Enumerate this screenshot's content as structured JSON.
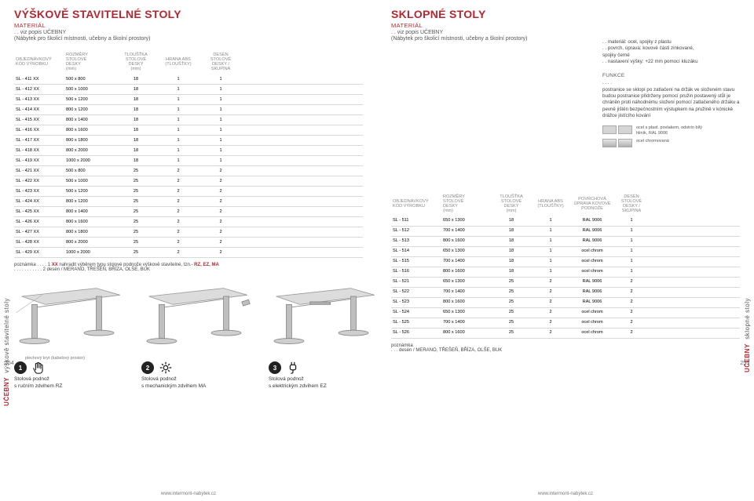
{
  "left": {
    "title": "VÝŠKOVĚ STAVITELNÉ STOLY",
    "material_label": "MATERIÁL",
    "material_note1": ". . viz popis UČEBNY",
    "material_note2": "(Nábytek pro školicí místnosti, učebny a školní prostory)",
    "headers": [
      "OBJEDNÁVKOVÝ\nKÓD VÝROBKU",
      "ROZMĚRY\nSTOLOVÉ\nDESKY\n(mm)",
      "TLOUŠŤKA\nSTOLOVÉ\nDESKY\n(mm)",
      "HRANA ABS\n(TLOUŠŤKY)",
      "DESÉN\nSTOLOVÉ\nDESKY /\nSKUPINA"
    ],
    "rows": [
      [
        "SL - 411 XX",
        "500 x 800",
        "18",
        "1",
        "1"
      ],
      [
        "SL - 412 XX",
        "500 x 1000",
        "18",
        "1",
        "1"
      ],
      [
        "SL - 413 XX",
        "500 x 1200",
        "18",
        "1",
        "1"
      ],
      [
        "SL - 414 XX",
        "800 x 1200",
        "18",
        "1",
        "1"
      ],
      [
        "SL - 415 XX",
        "800 x 1400",
        "18",
        "1",
        "1"
      ],
      [
        "SL - 416 XX",
        "800 x 1600",
        "18",
        "1",
        "1"
      ],
      [
        "SL - 417 XX",
        "800 x 1800",
        "18",
        "1",
        "1"
      ],
      [
        "SL - 418 XX",
        "800 x 2000",
        "18",
        "1",
        "1"
      ],
      [
        "SL - 419 XX",
        "1000 x 2000",
        "18",
        "1",
        "1"
      ],
      [
        "SL - 421 XX",
        "500 x 800",
        "25",
        "2",
        "2"
      ],
      [
        "SL - 422 XX",
        "500 x 1000",
        "25",
        "2",
        "2"
      ],
      [
        "SL - 423 XX",
        "500 x 1200",
        "25",
        "2",
        "2"
      ],
      [
        "SL - 424 XX",
        "800 x 1200",
        "25",
        "2",
        "2"
      ],
      [
        "SL - 425 XX",
        "800 x 1400",
        "25",
        "2",
        "2"
      ],
      [
        "SL - 426 XX",
        "800 x 1600",
        "25",
        "2",
        "2"
      ],
      [
        "SL - 427 XX",
        "800 x 1800",
        "25",
        "2",
        "2"
      ],
      [
        "SL - 428 XX",
        "800 x 2000",
        "25",
        "2",
        "2"
      ],
      [
        "SL - 429 XX",
        "1000 x 2000",
        "25",
        "2",
        "2"
      ]
    ],
    "note_label": "poznámka",
    "note1_prefix": ". . . . 1 ",
    "note1_bold": "XX",
    "note1_rest": " nahradit výběrem typu stolové podnože výškově stavitelné, tzn.- ",
    "note1_codes": "RZ, EZ, MA",
    "note2": ". . . . . . . . . . . 2 desén / MERANO, TŘEŠEŇ, BŘÍZA, OLŠE, BUK",
    "vtab_category": "UČEBNY",
    "vtab_sub": "výškově stavitelné stoly",
    "page_number": "254",
    "footer_url": "www.intermont-nabytek.cz",
    "callout1": "plechový kryt\n(kabelový prostor)",
    "legs": [
      {
        "num": "1",
        "line1": "Stolová podnož",
        "line2": "s ručním zdvihem RZ",
        "icon": "hand"
      },
      {
        "num": "2",
        "line1": "Stolová podnož",
        "line2": "s mechanickým zdvihem MA",
        "icon": "gear"
      },
      {
        "num": "3",
        "line1": "Stolová podnož",
        "line2": "s elektrickým zdvihem EZ",
        "icon": "plug"
      }
    ]
  },
  "right": {
    "title": "SKLOPNÉ STOLY",
    "material_label": "MATERIÁL",
    "material_note1": ". . viz popis UČEBNY",
    "material_note2": "(Nábytek pro školicí místnosti, učebny a školní prostory)",
    "desc_lines": [
      ". . materiál: ocel, spojky z plastu",
      ". . povrch. úprava: kovové části zinkované,",
      "spojky černé",
      ". . nastavení výšky: +22 mm pomocí kluzáku"
    ],
    "funkce_label": "FUNKCE",
    "funkce_dots": ". . . .",
    "funkce_text": "postranice se sklopí po zatlačení na držák ve složeném stavu budou postranice přidrženy pomocí pružin postavený stůl je chráněn proti náhodnému složení pomocí zatlačeného držáku a pevně jištěn bezpečnostním výstupkem na pružině v kónické drážce jistícího kování",
    "swatch1_text": "ocel s plast. povlakem, odstrín bílý hliník, RAL 9006",
    "swatch2_text": "ocel chromovaná",
    "headers": [
      "OBJEDNÁVKOVÝ\nKÓD VÝROBKU",
      "ROZMĚRY\nSTOLOVÉ\nDESKY\n(mm)",
      "TLOUŠŤKA\nSTOLOVÉ\nDESKY\n(mm)",
      "HRANA ABS\n(TLOUŠŤKY)",
      "POVRCHOVÁ\nÚPRAVA KOVOVÉ\nPODNOŽE",
      "DESÉN\nSTOLOVÉ\nDESKY /\nSKUPINA"
    ],
    "rows": [
      [
        "SL - 511",
        "650 x 1300",
        "18",
        "1",
        "RAL 9006",
        "1"
      ],
      [
        "SL - 512",
        "700 x 1400",
        "18",
        "1",
        "RAL 9006",
        "1"
      ],
      [
        "SL - 513",
        "800 x 1600",
        "18",
        "1",
        "RAL 9006",
        "1"
      ],
      [
        "SL - 514",
        "650 x 1300",
        "18",
        "1",
        "ocel chrom",
        "1"
      ],
      [
        "SL - 515",
        "700 x 1400",
        "18",
        "1",
        "ocel chrom",
        "1"
      ],
      [
        "SL - 516",
        "800 x 1600",
        "18",
        "1",
        "ocel chrom",
        "1"
      ],
      [
        "SL - 521",
        "650 x 1300",
        "25",
        "2",
        "RAL 9006",
        "2"
      ],
      [
        "SL - 522",
        "700 x 1400",
        "25",
        "2",
        "RAL 9006",
        "2"
      ],
      [
        "SL - 523",
        "800 x 1600",
        "25",
        "2",
        "RAL 9006",
        "2"
      ],
      [
        "SL - 524",
        "650 x 1300",
        "25",
        "2",
        "ocel chrom",
        "2"
      ],
      [
        "SL - 525",
        "700 x 1400",
        "25",
        "2",
        "ocel chrom",
        "2"
      ],
      [
        "SL - 526",
        "800 x 1600",
        "25",
        "2",
        "ocel chrom",
        "2"
      ]
    ],
    "note_label": "poznámka",
    "note_line": ". . . desén / MERANO, TŘEŠEŇ, BŘÍZA, OLŠE, BUK",
    "vtab_category": "UČEBNY",
    "vtab_sub": "sklopné stoly",
    "page_number": "255",
    "footer_url": "www.intermont-nabytek.cz"
  },
  "colors": {
    "accent": "#b8252f",
    "header_text": "#888888",
    "row_border": "#d9d9d9",
    "leg_stroke": "#8a8a8a",
    "leg_top": "#c9c9c9"
  }
}
